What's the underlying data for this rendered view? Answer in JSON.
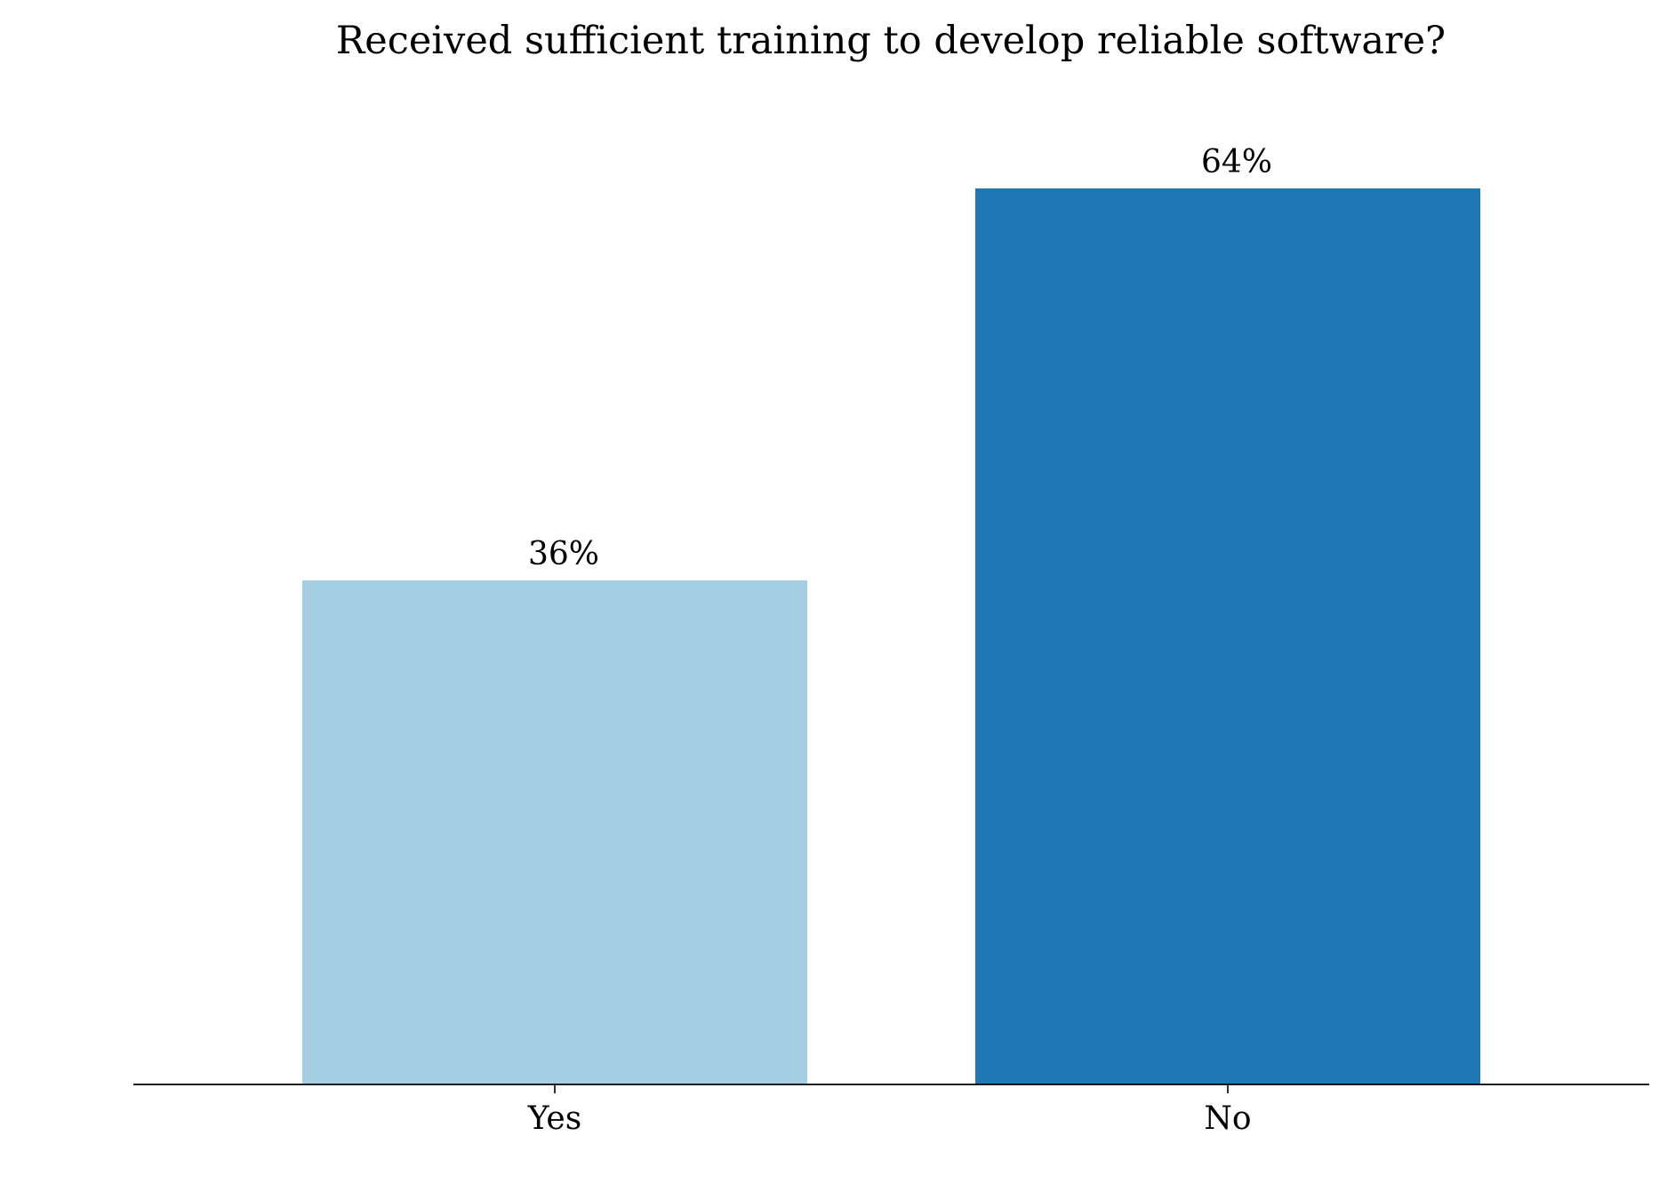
{
  "chart_data": {
    "type": "bar",
    "title": "Received sufficient training to develop reliable software?",
    "xlabel": "",
    "ylabel": "",
    "categories": [
      "Yes",
      "No"
    ],
    "values": [
      36,
      64
    ],
    "value_labels": [
      "36%",
      "64%"
    ],
    "colors": [
      "#a6cee3",
      "#1f78b4"
    ],
    "ylim": [
      0,
      70
    ],
    "grid": false,
    "legend": "none",
    "spines": {
      "bottom": true,
      "left": false,
      "top": false,
      "right": false
    },
    "ytick_labels_shown": false
  }
}
